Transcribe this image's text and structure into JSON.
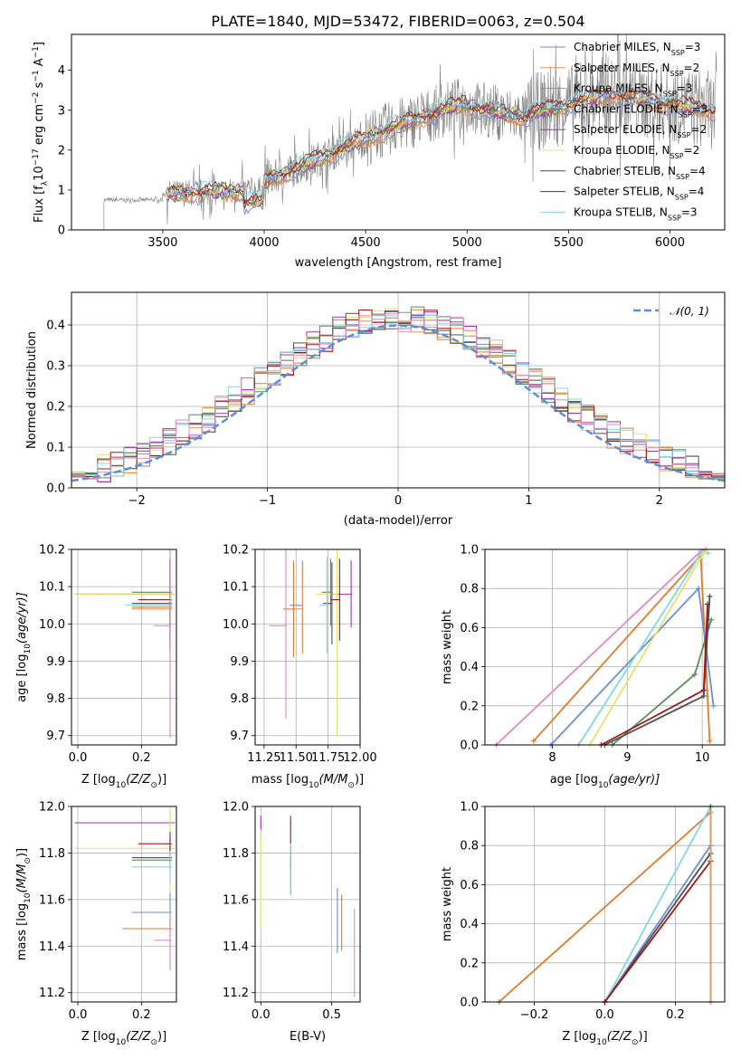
{
  "figure": {
    "title": "PLATE=1840, MJD=53472, FIBERID=0063, z=0.504"
  },
  "colors": {
    "data": "#808080",
    "models": [
      "#6a8fd8",
      "#e8945a",
      "#e07b2a",
      "#5a8a60",
      "#a030b0",
      "#e8e070",
      "#505050",
      "#a01818",
      "#80d8e0"
    ],
    "extra": "#e088c0",
    "gauss": "#5b8fd9"
  },
  "legend_spectrum": [
    {
      "name": "Chabrier MILES, N",
      "sub": "SSP",
      "suffix": "=3"
    },
    {
      "name": "Salpeter MILES, N",
      "sub": "SSP",
      "suffix": "=2"
    },
    {
      "name": "Kroupa MILES, N",
      "sub": "SSP",
      "suffix": "=3"
    },
    {
      "name": "Chabrier ELODIE, N",
      "sub": "SSP",
      "suffix": "=3"
    },
    {
      "name": "Salpeter ELODIE, N",
      "sub": "SSP",
      "suffix": "=2"
    },
    {
      "name": "Kroupa ELODIE, N",
      "sub": "SSP",
      "suffix": "=2"
    },
    {
      "name": "Chabrier STELIB, N",
      "sub": "SSP",
      "suffix": "=4"
    },
    {
      "name": "Salpeter STELIB, N",
      "sub": "SSP",
      "suffix": "=4"
    },
    {
      "name": "Kroupa STELIB, N",
      "sub": "SSP",
      "suffix": "=3"
    }
  ],
  "legend_hist": {
    "name": "𝒩(0, 1)"
  },
  "chart_data": [
    {
      "id": "spectrum",
      "type": "line",
      "xlabel": "wavelength [Angstrom, rest frame]",
      "ylabel": "Flux [f",
      "ylabel_sub": "λ",
      "ylabel_rest": "10",
      "ylabel_exp": "−17",
      "ylabel_units": " erg cm",
      "ylabel_exp2": "−2",
      "ylabel_s": " s",
      "ylabel_exp3": "−1",
      "ylabel_A": " A",
      "ylabel_exp4": "−1",
      "ylabel_end": "]",
      "xlim": [
        3050,
        6270
      ],
      "ylim": [
        0,
        4.9
      ],
      "xticks": [
        3500,
        4000,
        4500,
        5000,
        5500,
        6000
      ],
      "yticks": [
        0,
        1,
        2,
        3,
        4
      ],
      "data_x_start": 3210,
      "data_x_end": 6230,
      "model_x_start": 3520
    },
    {
      "id": "residuals",
      "type": "bar",
      "xlabel": "(data-model)/error",
      "ylabel": "Normed distribution",
      "xlim": [
        -2.5,
        2.5
      ],
      "ylim": [
        0,
        0.48
      ],
      "xticks": [
        -2,
        -1,
        0,
        1,
        2
      ],
      "xticklabels": [
        "−2",
        "−1",
        "0",
        "1",
        "2"
      ],
      "yticks": [
        0,
        0.1,
        0.2,
        0.3,
        0.4
      ],
      "yticklabels": [
        "0.0",
        "0.1",
        "0.2",
        "0.3",
        "0.4"
      ],
      "bin_width": 0.1
    },
    {
      "id": "age_vs_Z",
      "type": "scatter",
      "xlabel": "Z [log",
      "xlabel_sub": "10",
      "xlabel_rest": "(Z/Z",
      "xlabel_sun": "⊙",
      "xlabel_end": ")]",
      "ylabel": "age  [log",
      "ylabel_sub": "10",
      "ylabel_rest": "(age/yr)]",
      "xlim": [
        -0.02,
        0.31
      ],
      "ylim": [
        9.675,
        10.2
      ],
      "xticks": [
        0,
        0.2
      ],
      "xticklabels": [
        "0.0",
        "0.2"
      ],
      "yticks": [
        9.7,
        9.8,
        9.9,
        10.0,
        10.1,
        10.2
      ],
      "yticklabels": [
        "9.7",
        "9.8",
        "9.9",
        "10.0",
        "10.1",
        "10.2"
      ],
      "points": [
        {
          "x": 0.29,
          "y": 10.055,
          "xe": 0.12,
          "ye": 0.12,
          "c": 0
        },
        {
          "x": 0.29,
          "y": 10.04,
          "xe": 0.12,
          "ye": 0.12,
          "c": 1
        },
        {
          "x": 0.29,
          "y": 10.045,
          "xe": 0.12,
          "ye": 0.12,
          "c": 2
        },
        {
          "x": 0.29,
          "y": 10.085,
          "xe": 0.12,
          "ye": 0.09,
          "c": 3
        },
        {
          "x": 0.29,
          "y": 10.08,
          "xe": 0.3,
          "ye": 0.09,
          "c": 4
        },
        {
          "x": 0.29,
          "y": 10.08,
          "xe": 0.3,
          "ye": 0.38,
          "c": 5
        },
        {
          "x": 0.29,
          "y": 10.055,
          "xe": 0.12,
          "ye": 0.12,
          "c": 6
        },
        {
          "x": 0.29,
          "y": 10.065,
          "xe": 0.1,
          "ye": 0.11,
          "c": 7
        },
        {
          "x": 0.29,
          "y": 10.05,
          "xe": 0.14,
          "ye": 0.13,
          "c": 8
        },
        {
          "x": 0.29,
          "y": 9.995,
          "xe": 0.05,
          "ye": 0.3,
          "c": 9
        }
      ]
    },
    {
      "id": "age_vs_mass",
      "type": "scatter",
      "xlabel": "mass [log",
      "xlabel_sub": "10",
      "xlabel_rest": "(M/M",
      "xlabel_sun": "⊙",
      "xlabel_end": ")]",
      "xlim": [
        11.18,
        12.0
      ],
      "ylim": [
        9.675,
        10.2
      ],
      "xticks": [
        11.25,
        11.5,
        11.75,
        12.0
      ],
      "xticklabels": [
        "11.25",
        "11.50",
        "11.75",
        "12.00"
      ],
      "yticks": [
        9.7,
        9.8,
        9.9,
        10.0,
        10.1,
        10.2
      ],
      "yticklabels": [
        "9.7",
        "9.8",
        "9.9",
        "10.0",
        "10.1",
        "10.2"
      ],
      "points": [
        {
          "x": 11.55,
          "y": 10.05,
          "xe": 0.1,
          "ye": 0.12,
          "c": 0
        },
        {
          "x": 11.55,
          "y": 10.04,
          "xe": 0.08,
          "ye": 0.12,
          "c": 1
        },
        {
          "x": 11.48,
          "y": 10.04,
          "xe": 0.08,
          "ye": 0.13,
          "c": 2
        },
        {
          "x": 11.77,
          "y": 10.085,
          "xe": 0.07,
          "ye": 0.09,
          "c": 3
        },
        {
          "x": 11.93,
          "y": 10.08,
          "xe": 0.17,
          "ye": 0.09,
          "c": 4
        },
        {
          "x": 11.82,
          "y": 10.08,
          "xe": 0.17,
          "ye": 0.38,
          "c": 5
        },
        {
          "x": 11.78,
          "y": 10.055,
          "xe": 0.07,
          "ye": 0.11,
          "c": 6
        },
        {
          "x": 11.84,
          "y": 10.065,
          "xe": 0.07,
          "ye": 0.11,
          "c": 7
        },
        {
          "x": 11.74,
          "y": 10.05,
          "xe": 0.06,
          "ye": 0.13,
          "c": 8
        },
        {
          "x": 11.42,
          "y": 9.995,
          "xe": 0.13,
          "ye": 0.25,
          "c": 9
        }
      ]
    },
    {
      "id": "weight_vs_age",
      "type": "line",
      "xlabel": "age  [log",
      "xlabel_sub": "10",
      "xlabel_rest": "(age/yr)]",
      "ylabel": "mass weight",
      "xlim": [
        7.1,
        10.3
      ],
      "ylim": [
        0,
        1
      ],
      "xticks": [
        8,
        9,
        10
      ],
      "xticklabels": [
        "8",
        "9",
        "10"
      ],
      "yticks": [
        0,
        0.2,
        0.4,
        0.6,
        0.8,
        1.0
      ],
      "yticklabels": [
        "0.0",
        "0.2",
        "0.4",
        "0.6",
        "0.8",
        "1.0"
      ],
      "series": [
        {
          "c": 9,
          "pts": [
            [
              7.25,
              0
            ],
            [
              9.98,
              0.99
            ],
            [
              10.05,
              1.0
            ]
          ]
        },
        {
          "c": 2,
          "pts": [
            [
              7.75,
              0.02
            ],
            [
              9.98,
              0.97
            ],
            [
              10.1,
              0.02
            ]
          ]
        },
        {
          "c": 0,
          "pts": [
            [
              7.98,
              0
            ],
            [
              9.95,
              0.8
            ],
            [
              10.15,
              0.2
            ]
          ]
        },
        {
          "c": 8,
          "pts": [
            [
              8.35,
              0
            ],
            [
              10.0,
              0.99
            ],
            [
              10.08,
              0.98
            ]
          ]
        },
        {
          "c": 5,
          "pts": [
            [
              8.5,
              0
            ],
            [
              10.0,
              0.97
            ],
            [
              10.05,
              0.99
            ]
          ]
        },
        {
          "c": 3,
          "pts": [
            [
              8.8,
              0
            ],
            [
              9.9,
              0.36
            ],
            [
              10.12,
              0.64
            ]
          ]
        },
        {
          "c": 6,
          "pts": [
            [
              8.7,
              0
            ],
            [
              10.02,
              0.25
            ],
            [
              10.1,
              0.76
            ]
          ]
        },
        {
          "c": 7,
          "pts": [
            [
              8.65,
              0
            ],
            [
              10.02,
              0.28
            ],
            [
              10.07,
              0.72
            ]
          ]
        }
      ]
    },
    {
      "id": "mass_vs_Z",
      "type": "scatter",
      "xlabel": "Z [log",
      "xlabel_sub": "10",
      "xlabel_rest": "(Z/Z",
      "xlabel_sun": "⊙",
      "xlabel_end": ")]",
      "ylabel": "mass [log",
      "ylabel_sub": "10",
      "ylabel_rest": "(M/M",
      "ylabel_sun": "⊙",
      "ylabel_end": ")]",
      "xlim": [
        -0.02,
        0.31
      ],
      "ylim": [
        11.16,
        12.0
      ],
      "xticks": [
        0,
        0.2
      ],
      "xticklabels": [
        "0.0",
        "0.2"
      ],
      "yticks": [
        11.2,
        11.4,
        11.6,
        11.8,
        12.0
      ],
      "yticklabels": [
        "11.2",
        "11.4",
        "11.6",
        "11.8",
        "12.0"
      ],
      "points": [
        {
          "x": 0.29,
          "y": 11.545,
          "xe": 0.12,
          "ye": 0.1,
          "c": 0
        },
        {
          "x": 0.29,
          "y": 11.475,
          "xe": 0.15,
          "ye": 0.08,
          "c": 2
        },
        {
          "x": 0.29,
          "y": 11.77,
          "xe": 0.12,
          "ye": 0.05,
          "c": 3
        },
        {
          "x": 0.29,
          "y": 11.93,
          "xe": 0.3,
          "ye": 0.04,
          "c": 4
        },
        {
          "x": 0.29,
          "y": 11.82,
          "xe": 0.3,
          "ye": 0.19,
          "c": 5
        },
        {
          "x": 0.29,
          "y": 11.78,
          "xe": 0.12,
          "ye": 0.05,
          "c": 6
        },
        {
          "x": 0.29,
          "y": 11.84,
          "xe": 0.1,
          "ye": 0.05,
          "c": 7
        },
        {
          "x": 0.29,
          "y": 11.74,
          "xe": 0.12,
          "ye": 0.07,
          "c": 8
        },
        {
          "x": 0.29,
          "y": 11.425,
          "xe": 0.05,
          "ye": 0.13,
          "c": 9
        }
      ]
    },
    {
      "id": "mass_vs_EBV",
      "type": "scatter",
      "xlabel": "E(B-V)",
      "xlim": [
        -0.04,
        0.7
      ],
      "ylim": [
        11.16,
        12.0
      ],
      "xticks": [
        0,
        0.5
      ],
      "xticklabels": [
        "0.0",
        "0.5"
      ],
      "yticks": [
        11.2,
        11.4,
        11.6,
        11.8,
        12.0
      ],
      "yticklabels": [
        "11.2",
        "11.4",
        "11.6",
        "11.8",
        "12.0"
      ],
      "points": [
        {
          "x": 0.54,
          "y": 11.51,
          "ye": 0.14,
          "c": 0
        },
        {
          "x": 0.57,
          "y": 11.5,
          "ye": 0.12,
          "c": 2
        },
        {
          "x": 0.21,
          "y": 11.7,
          "ye": 0.08,
          "c": 3
        },
        {
          "x": 0.0,
          "y": 11.93,
          "ye": 0.03,
          "c": 4
        },
        {
          "x": 0.0,
          "y": 11.68,
          "ye": 0.2,
          "c": 5
        },
        {
          "x": 0.21,
          "y": 11.78,
          "ye": 0.05,
          "c": 6
        },
        {
          "x": 0.21,
          "y": 11.9,
          "ye": 0.06,
          "c": 7
        },
        {
          "x": 0.21,
          "y": 11.73,
          "ye": 0.11,
          "c": 8
        },
        {
          "x": 0.66,
          "y": 11.37,
          "ye": 0.19,
          "c": 9
        }
      ]
    },
    {
      "id": "weight_vs_Z",
      "type": "line",
      "xlabel": "Z [log",
      "xlabel_sub": "10",
      "xlabel_rest": "(Z/Z",
      "xlabel_sun": "⊙",
      "xlabel_end": ")]",
      "ylabel": "mass weight",
      "xlim": [
        -0.34,
        0.34
      ],
      "ylim": [
        0,
        1
      ],
      "xticks": [
        -0.2,
        0,
        0.2
      ],
      "xticklabels": [
        "−0.2",
        "0.0",
        "0.2"
      ],
      "yticks": [
        0,
        0.2,
        0.4,
        0.6,
        0.8,
        1.0
      ],
      "yticklabels": [
        "0.0",
        "0.2",
        "0.4",
        "0.6",
        "0.8",
        "1.0"
      ],
      "series": [
        {
          "c": 2,
          "pts": [
            [
              -0.3,
              0
            ],
            [
              0.3,
              0.97
            ]
          ]
        },
        {
          "c": 0,
          "pts": [
            [
              0,
              0
            ],
            [
              0.3,
              0.8
            ]
          ]
        },
        {
          "c": 8,
          "pts": [
            [
              0,
              0
            ],
            [
              0.3,
              1.0
            ]
          ]
        },
        {
          "c": 6,
          "pts": [
            [
              0,
              0
            ],
            [
              0.3,
              0.76
            ]
          ]
        },
        {
          "c": 7,
          "pts": [
            [
              0,
              0
            ],
            [
              0.3,
              0.72
            ]
          ]
        },
        {
          "c": 3,
          "pts": [
            [
              0.3,
              0
            ],
            [
              0.3,
              1.0
            ]
          ]
        },
        {
          "c": 1,
          "pts": [
            [
              0.3,
              0
            ],
            [
              0.3,
              0.97
            ]
          ]
        }
      ]
    }
  ]
}
